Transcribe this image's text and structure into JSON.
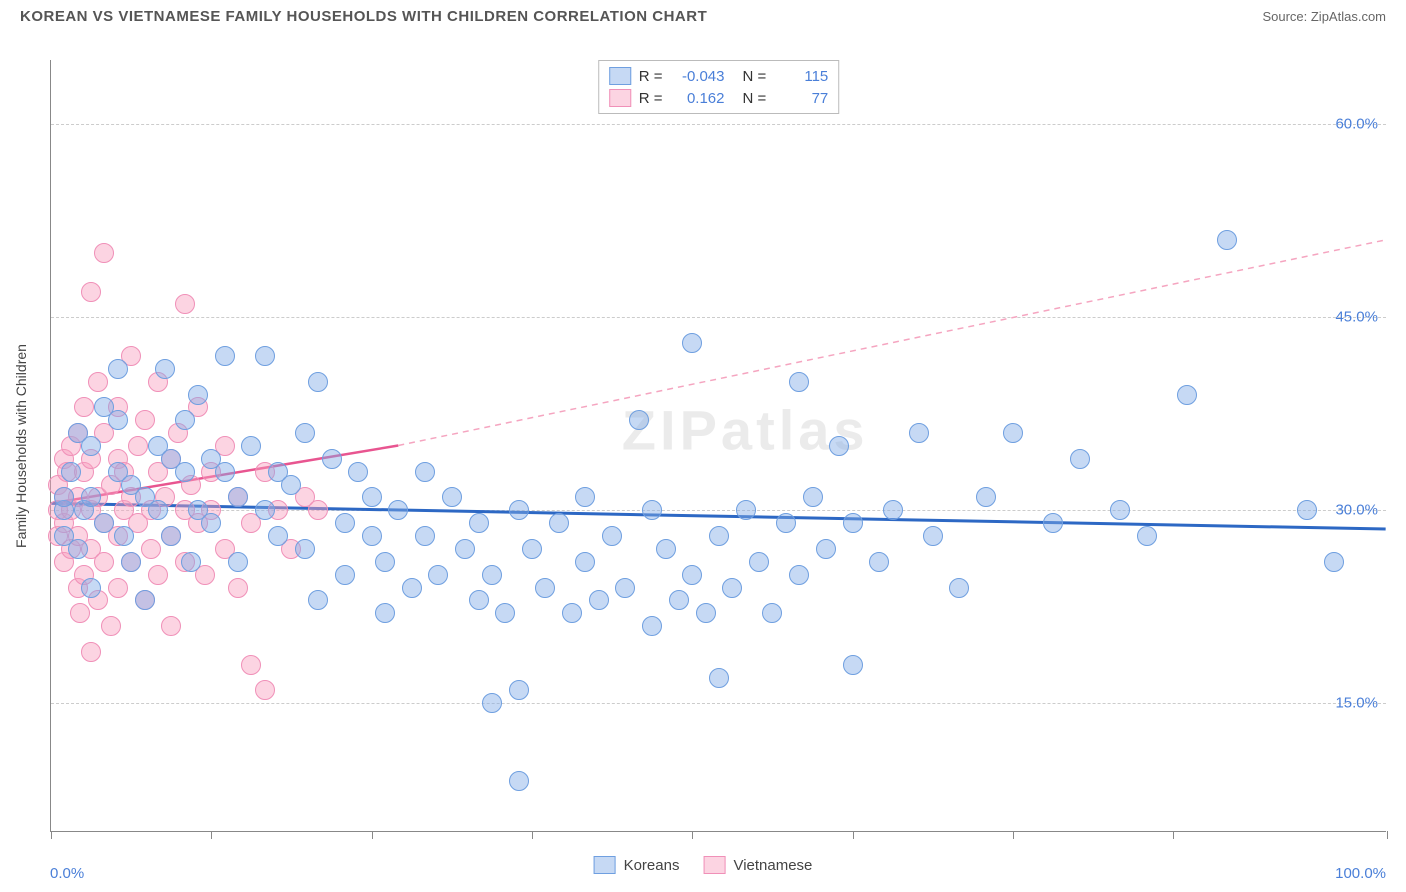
{
  "header": {
    "title": "KOREAN VS VIETNAMESE FAMILY HOUSEHOLDS WITH CHILDREN CORRELATION CHART",
    "source": "Source: ZipAtlas.com"
  },
  "chart": {
    "type": "scatter",
    "ylabel": "Family Households with Children",
    "watermark": "ZIPatlas",
    "xlim": [
      0,
      100
    ],
    "ylim": [
      5,
      65
    ],
    "xtick_positions": [
      0,
      12,
      24,
      36,
      48,
      60,
      72,
      84,
      100
    ],
    "xtick_labels": {
      "0": "0.0%",
      "100": "100.0%"
    },
    "ytick_positions": [
      15,
      30,
      45,
      60
    ],
    "ytick_labels": {
      "15": "15.0%",
      "30": "30.0%",
      "45": "45.0%",
      "60": "60.0%"
    },
    "ytick_color": "#4a7fd8",
    "xtick_color": "#4a7fd8",
    "grid_color": "#cccccc",
    "marker_radius": 10,
    "marker_border_width": 1,
    "series": {
      "korean": {
        "label": "Koreans",
        "fill": "rgba(128,170,230,0.45)",
        "stroke": "#6f9fe0",
        "R": "-0.043",
        "N": "115",
        "trend": {
          "x1": 0,
          "y1": 30.5,
          "x2": 100,
          "y2": 28.5,
          "color": "#2d68c4",
          "width": 3,
          "dash": ""
        },
        "points": [
          [
            1,
            30
          ],
          [
            1,
            31
          ],
          [
            1,
            28
          ],
          [
            1.5,
            33
          ],
          [
            2,
            27
          ],
          [
            2,
            36
          ],
          [
            2.5,
            30
          ],
          [
            3,
            35
          ],
          [
            3,
            24
          ],
          [
            3,
            31
          ],
          [
            4,
            29
          ],
          [
            4,
            38
          ],
          [
            5,
            37
          ],
          [
            5,
            41
          ],
          [
            5,
            33
          ],
          [
            5.5,
            28
          ],
          [
            6,
            26
          ],
          [
            6,
            32
          ],
          [
            7,
            31
          ],
          [
            7,
            23
          ],
          [
            8,
            35
          ],
          [
            8,
            30
          ],
          [
            8.5,
            41
          ],
          [
            9,
            28
          ],
          [
            9,
            34
          ],
          [
            10,
            37
          ],
          [
            10,
            33
          ],
          [
            10.5,
            26
          ],
          [
            11,
            30
          ],
          [
            11,
            39
          ],
          [
            12,
            34
          ],
          [
            12,
            29
          ],
          [
            13,
            33
          ],
          [
            13,
            42
          ],
          [
            14,
            31
          ],
          [
            14,
            26
          ],
          [
            15,
            35
          ],
          [
            16,
            42
          ],
          [
            16,
            30
          ],
          [
            17,
            33
          ],
          [
            17,
            28
          ],
          [
            18,
            32
          ],
          [
            19,
            36
          ],
          [
            19,
            27
          ],
          [
            20,
            40
          ],
          [
            20,
            23
          ],
          [
            21,
            34
          ],
          [
            22,
            29
          ],
          [
            22,
            25
          ],
          [
            23,
            33
          ],
          [
            24,
            31
          ],
          [
            24,
            28
          ],
          [
            25,
            26
          ],
          [
            25,
            22
          ],
          [
            26,
            30
          ],
          [
            27,
            24
          ],
          [
            28,
            28
          ],
          [
            28,
            33
          ],
          [
            29,
            25
          ],
          [
            30,
            31
          ],
          [
            31,
            27
          ],
          [
            32,
            23
          ],
          [
            32,
            29
          ],
          [
            33,
            25
          ],
          [
            33,
            15
          ],
          [
            34,
            22
          ],
          [
            35,
            16
          ],
          [
            35,
            30
          ],
          [
            35,
            9
          ],
          [
            36,
            27
          ],
          [
            37,
            24
          ],
          [
            38,
            29
          ],
          [
            39,
            22
          ],
          [
            40,
            26
          ],
          [
            40,
            31
          ],
          [
            41,
            23
          ],
          [
            42,
            28
          ],
          [
            43,
            24
          ],
          [
            44,
            37
          ],
          [
            45,
            21
          ],
          [
            45,
            30
          ],
          [
            46,
            27
          ],
          [
            47,
            23
          ],
          [
            48,
            43
          ],
          [
            48,
            25
          ],
          [
            49,
            22
          ],
          [
            50,
            28
          ],
          [
            50,
            17
          ],
          [
            51,
            24
          ],
          [
            52,
            30
          ],
          [
            53,
            26
          ],
          [
            54,
            22
          ],
          [
            55,
            29
          ],
          [
            56,
            40
          ],
          [
            56,
            25
          ],
          [
            57,
            31
          ],
          [
            58,
            27
          ],
          [
            59,
            35
          ],
          [
            60,
            29
          ],
          [
            60,
            18
          ],
          [
            62,
            26
          ],
          [
            63,
            30
          ],
          [
            65,
            36
          ],
          [
            66,
            28
          ],
          [
            68,
            24
          ],
          [
            70,
            31
          ],
          [
            72,
            36
          ],
          [
            75,
            29
          ],
          [
            77,
            34
          ],
          [
            80,
            30
          ],
          [
            82,
            28
          ],
          [
            85,
            39
          ],
          [
            88,
            51
          ],
          [
            94,
            30
          ],
          [
            96,
            26
          ]
        ]
      },
      "vietnamese": {
        "label": "Vietnamese",
        "fill": "rgba(248,160,190,0.45)",
        "stroke": "#f090b8",
        "R": "0.162",
        "N": "77",
        "trend_solid": {
          "x1": 0,
          "y1": 30.5,
          "x2": 26,
          "y2": 35,
          "color": "#e85590",
          "width": 2.5,
          "dash": ""
        },
        "trend_dashed": {
          "x1": 26,
          "y1": 35,
          "x2": 100,
          "y2": 51,
          "color": "#f5a5c0",
          "width": 1.5,
          "dash": "6,5"
        },
        "points": [
          [
            0.5,
            30
          ],
          [
            0.5,
            32
          ],
          [
            0.5,
            28
          ],
          [
            1,
            34
          ],
          [
            1,
            26
          ],
          [
            1,
            31
          ],
          [
            1,
            29
          ],
          [
            1.2,
            33
          ],
          [
            1.5,
            27
          ],
          [
            1.5,
            35
          ],
          [
            1.5,
            30
          ],
          [
            2,
            24
          ],
          [
            2,
            36
          ],
          [
            2,
            31
          ],
          [
            2,
            28
          ],
          [
            2.2,
            22
          ],
          [
            2.5,
            33
          ],
          [
            2.5,
            25
          ],
          [
            2.5,
            38
          ],
          [
            3,
            30
          ],
          [
            3,
            27
          ],
          [
            3,
            34
          ],
          [
            3,
            19
          ],
          [
            3,
            47
          ],
          [
            3.5,
            31
          ],
          [
            3.5,
            23
          ],
          [
            3.5,
            40
          ],
          [
            4,
            29
          ],
          [
            4,
            36
          ],
          [
            4,
            26
          ],
          [
            4,
            50
          ],
          [
            4.5,
            32
          ],
          [
            4.5,
            21
          ],
          [
            5,
            34
          ],
          [
            5,
            28
          ],
          [
            5,
            24
          ],
          [
            5,
            38
          ],
          [
            5.5,
            30
          ],
          [
            5.5,
            33
          ],
          [
            6,
            26
          ],
          [
            6,
            31
          ],
          [
            6,
            42
          ],
          [
            6.5,
            29
          ],
          [
            6.5,
            35
          ],
          [
            7,
            23
          ],
          [
            7,
            37
          ],
          [
            7.5,
            30
          ],
          [
            7.5,
            27
          ],
          [
            8,
            33
          ],
          [
            8,
            25
          ],
          [
            8,
            40
          ],
          [
            8.5,
            31
          ],
          [
            9,
            28
          ],
          [
            9,
            34
          ],
          [
            9,
            21
          ],
          [
            9.5,
            36
          ],
          [
            10,
            30
          ],
          [
            10,
            26
          ],
          [
            10,
            46
          ],
          [
            10.5,
            32
          ],
          [
            11,
            29
          ],
          [
            11,
            38
          ],
          [
            11.5,
            25
          ],
          [
            12,
            33
          ],
          [
            12,
            30
          ],
          [
            13,
            27
          ],
          [
            13,
            35
          ],
          [
            14,
            31
          ],
          [
            14,
            24
          ],
          [
            15,
            29
          ],
          [
            15,
            18
          ],
          [
            16,
            33
          ],
          [
            16,
            16
          ],
          [
            17,
            30
          ],
          [
            18,
            27
          ],
          [
            19,
            31
          ],
          [
            20,
            30
          ]
        ]
      }
    }
  }
}
